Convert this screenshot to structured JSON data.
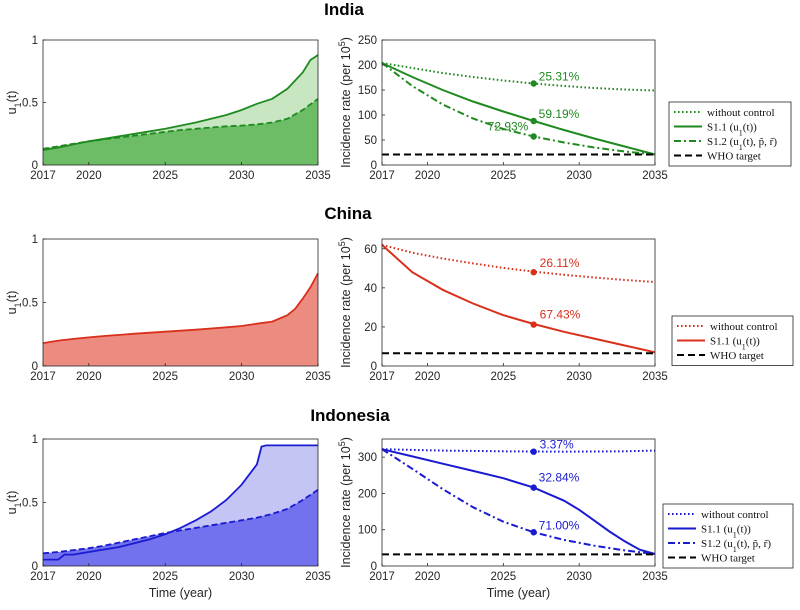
{
  "colors": {
    "India": "#1f8a1f",
    "China": "#d9301c",
    "Indonesia": "#1a1ad1",
    "India_fill_light": "#c9e6c3",
    "India_fill_dark": "#6cbd66",
    "China_fill": "#ec8c80",
    "Indonesia_fill_light": "#c4c4f5",
    "Indonesia_fill_dark": "#7272ee",
    "who": "#000000"
  },
  "chart_data": [
    {
      "type": "area",
      "title": "India",
      "ylabel": "u1(t)",
      "xlabel": "",
      "xlim": [
        2017,
        2035
      ],
      "ylim": [
        0,
        1
      ],
      "xticks": [
        "2017",
        "2020",
        "2025",
        "2030",
        "2035"
      ],
      "yticks": [
        "0",
        "0.5",
        "1"
      ],
      "series": [
        {
          "name": "S1.1 u1(t)",
          "x": [
            2017,
            2018,
            2019,
            2020,
            2021,
            2022,
            2023,
            2024,
            2025,
            2026,
            2027,
            2028,
            2029,
            2030,
            2031,
            2032,
            2033,
            2034,
            2034.5,
            2035
          ],
          "values": [
            0.12,
            0.14,
            0.165,
            0.19,
            0.21,
            0.23,
            0.25,
            0.27,
            0.29,
            0.315,
            0.34,
            0.37,
            0.4,
            0.44,
            0.49,
            0.53,
            0.61,
            0.74,
            0.84,
            0.88
          ]
        },
        {
          "name": "S1.2 u1(t)",
          "x": [
            2017,
            2018,
            2019,
            2020,
            2021,
            2022,
            2023,
            2024,
            2025,
            2026,
            2027,
            2028,
            2029,
            2030,
            2031,
            2032,
            2033,
            2034,
            2035
          ],
          "values": [
            0.13,
            0.15,
            0.17,
            0.19,
            0.205,
            0.22,
            0.235,
            0.25,
            0.265,
            0.28,
            0.29,
            0.3,
            0.31,
            0.315,
            0.325,
            0.34,
            0.37,
            0.44,
            0.53
          ]
        }
      ]
    },
    {
      "type": "line",
      "title": "India",
      "ylabel": "Incidence rate (per 10^5)",
      "xlabel": "",
      "xlim": [
        2017,
        2035
      ],
      "ylim": [
        0,
        250
      ],
      "xticks": [
        "2017",
        "2020",
        "2025",
        "2030",
        "2035"
      ],
      "yticks": [
        "0",
        "50",
        "100",
        "150",
        "200",
        "250"
      ],
      "series": [
        {
          "name": "without control",
          "x": [
            2017,
            2019,
            2021,
            2023,
            2025,
            2027,
            2029,
            2031,
            2033,
            2035
          ],
          "values": [
            204,
            194,
            184,
            176,
            169,
            163,
            158,
            154,
            151,
            149
          ]
        },
        {
          "name": "S1.1 (u1(t))",
          "x": [
            2017,
            2019,
            2021,
            2023,
            2025,
            2027,
            2029,
            2031,
            2033,
            2035
          ],
          "values": [
            204,
            176,
            150,
            127,
            107,
            88,
            70,
            53,
            37,
            21
          ]
        },
        {
          "name": "S1.2 (u1(t), p~, r~)",
          "x": [
            2017,
            2019,
            2021,
            2023,
            2025,
            2027,
            2029,
            2031,
            2033,
            2035
          ],
          "values": [
            204,
            158,
            121,
            93,
            72,
            57,
            45,
            35,
            27,
            21
          ]
        },
        {
          "name": "WHO target",
          "x": [
            2017,
            2035
          ],
          "values": [
            21,
            21
          ]
        }
      ],
      "markers": [
        {
          "x": 2027,
          "y": 163,
          "label": "25.31%"
        },
        {
          "x": 2027,
          "y": 88,
          "label": "59.19%"
        },
        {
          "x": 2027,
          "y": 57,
          "label": "72.93%"
        }
      ],
      "legend": [
        "without control",
        "S1.1 (u1(t))",
        "S1.2 (u1(t), p~, r~)",
        "WHO target"
      ]
    },
    {
      "type": "area",
      "title": "China",
      "ylabel": "u1(t)",
      "xlabel": "",
      "xlim": [
        2017,
        2035
      ],
      "ylim": [
        0,
        1
      ],
      "xticks": [
        "2017",
        "2020",
        "2025",
        "2030",
        "2035"
      ],
      "yticks": [
        "0",
        "0.5",
        "1"
      ],
      "series": [
        {
          "name": "S1.1 u1(t)",
          "x": [
            2017,
            2018,
            2019,
            2020,
            2021,
            2022,
            2023,
            2024,
            2025,
            2026,
            2027,
            2028,
            2029,
            2030,
            2031,
            2032,
            2033,
            2033.5,
            2034,
            2034.5,
            2035
          ],
          "values": [
            0.18,
            0.2,
            0.213,
            0.225,
            0.236,
            0.245,
            0.254,
            0.262,
            0.27,
            0.278,
            0.286,
            0.295,
            0.305,
            0.315,
            0.333,
            0.35,
            0.4,
            0.45,
            0.53,
            0.62,
            0.73
          ]
        }
      ]
    },
    {
      "type": "line",
      "title": "China",
      "ylabel": "Incidence rate (per 10^5)",
      "xlabel": "",
      "xlim": [
        2017,
        2035
      ],
      "ylim": [
        0,
        65
      ],
      "xticks": [
        "2017",
        "2020",
        "2025",
        "2030",
        "2035"
      ],
      "yticks": [
        "0",
        "20",
        "40",
        "60"
      ],
      "series": [
        {
          "name": "without control",
          "x": [
            2017,
            2019,
            2021,
            2023,
            2025,
            2027,
            2029,
            2031,
            2033,
            2035
          ],
          "values": [
            62,
            58,
            55,
            52.5,
            50.2,
            48.3,
            46.7,
            45.3,
            44,
            43
          ]
        },
        {
          "name": "S1.1 (u1(t))",
          "x": [
            2017,
            2019,
            2021,
            2023,
            2025,
            2027,
            2029,
            2031,
            2033,
            2035
          ],
          "values": [
            62,
            48,
            39,
            32,
            26,
            21.5,
            17.5,
            14,
            10.5,
            7
          ]
        },
        {
          "name": "WHO target",
          "x": [
            2017,
            2035
          ],
          "values": [
            6.5,
            6.5
          ]
        }
      ],
      "markers": [
        {
          "x": 2027,
          "y": 48,
          "label": "26.11%"
        },
        {
          "x": 2027,
          "y": 21.2,
          "label": "67.43%"
        }
      ],
      "legend": [
        "without control",
        "S1.1 (u1(t))",
        "WHO target"
      ]
    },
    {
      "type": "area",
      "title": "Indonesia",
      "ylabel": "u1(t)",
      "xlabel": "Time (year)",
      "xlim": [
        2017,
        2035
      ],
      "ylim": [
        0,
        1
      ],
      "xticks": [
        "2017",
        "2020",
        "2025",
        "2030",
        "2035"
      ],
      "yticks": [
        "0",
        "0.5",
        "1"
      ],
      "series": [
        {
          "name": "S1.1 u1(t)",
          "x": [
            2017,
            2018,
            2018.4,
            2019,
            2019.5,
            2020,
            2021,
            2022,
            2023,
            2024,
            2025,
            2026,
            2027,
            2028,
            2029,
            2030,
            2031,
            2031.3,
            2031.6,
            2032,
            2033,
            2034,
            2035
          ],
          "values": [
            0.05,
            0.05,
            0.09,
            0.09,
            0.1,
            0.11,
            0.13,
            0.15,
            0.18,
            0.21,
            0.25,
            0.3,
            0.36,
            0.43,
            0.52,
            0.64,
            0.8,
            0.94,
            0.95,
            0.95,
            0.95,
            0.95,
            0.95
          ]
        },
        {
          "name": "S1.2 u1(t)",
          "x": [
            2017,
            2018,
            2019,
            2020,
            2021,
            2022,
            2023,
            2024,
            2025,
            2026,
            2027,
            2028,
            2029,
            2030,
            2031,
            2032,
            2033,
            2034,
            2035
          ],
          "values": [
            0.1,
            0.11,
            0.125,
            0.14,
            0.16,
            0.185,
            0.21,
            0.235,
            0.26,
            0.28,
            0.3,
            0.32,
            0.34,
            0.36,
            0.38,
            0.41,
            0.45,
            0.52,
            0.6
          ]
        }
      ]
    },
    {
      "type": "line",
      "title": "Indonesia",
      "ylabel": "Incidence rate (per 10^5)",
      "xlabel": "Time (year)",
      "xlim": [
        2017,
        2035
      ],
      "ylim": [
        0,
        350
      ],
      "xticks": [
        "2017",
        "2020",
        "2025",
        "2030",
        "2035"
      ],
      "yticks": [
        "0",
        "100",
        "200",
        "300"
      ],
      "series": [
        {
          "name": "without control",
          "x": [
            2017,
            2021,
            2025,
            2029,
            2033,
            2035
          ],
          "values": [
            322,
            318,
            316,
            315,
            316,
            318
          ]
        },
        {
          "name": "S1.1 (u1(t))",
          "x": [
            2017,
            2019,
            2021,
            2023,
            2025,
            2027,
            2029,
            2030,
            2031,
            2032,
            2033,
            2034,
            2035
          ],
          "values": [
            322,
            302,
            282,
            262,
            242,
            216,
            180,
            155,
            125,
            95,
            68,
            45,
            33
          ]
        },
        {
          "name": "S1.2 (u1(t), p~, r~)",
          "x": [
            2017,
            2019,
            2021,
            2023,
            2025,
            2027,
            2029,
            2031,
            2033,
            2035
          ],
          "values": [
            322,
            268,
            212,
            162,
            122,
            93,
            72,
            56,
            43,
            33
          ]
        },
        {
          "name": "WHO target",
          "x": [
            2017,
            2035
          ],
          "values": [
            32,
            32
          ]
        }
      ],
      "markers": [
        {
          "x": 2027,
          "y": 315,
          "label": "3.37%"
        },
        {
          "x": 2027,
          "y": 216,
          "label": "32.84%"
        },
        {
          "x": 2027,
          "y": 93,
          "label": "71.00%"
        }
      ],
      "legend": [
        "without control",
        "S1.1 (u1(t))",
        "S1.2 (u1(t), p~, r~)",
        "WHO target"
      ]
    }
  ]
}
